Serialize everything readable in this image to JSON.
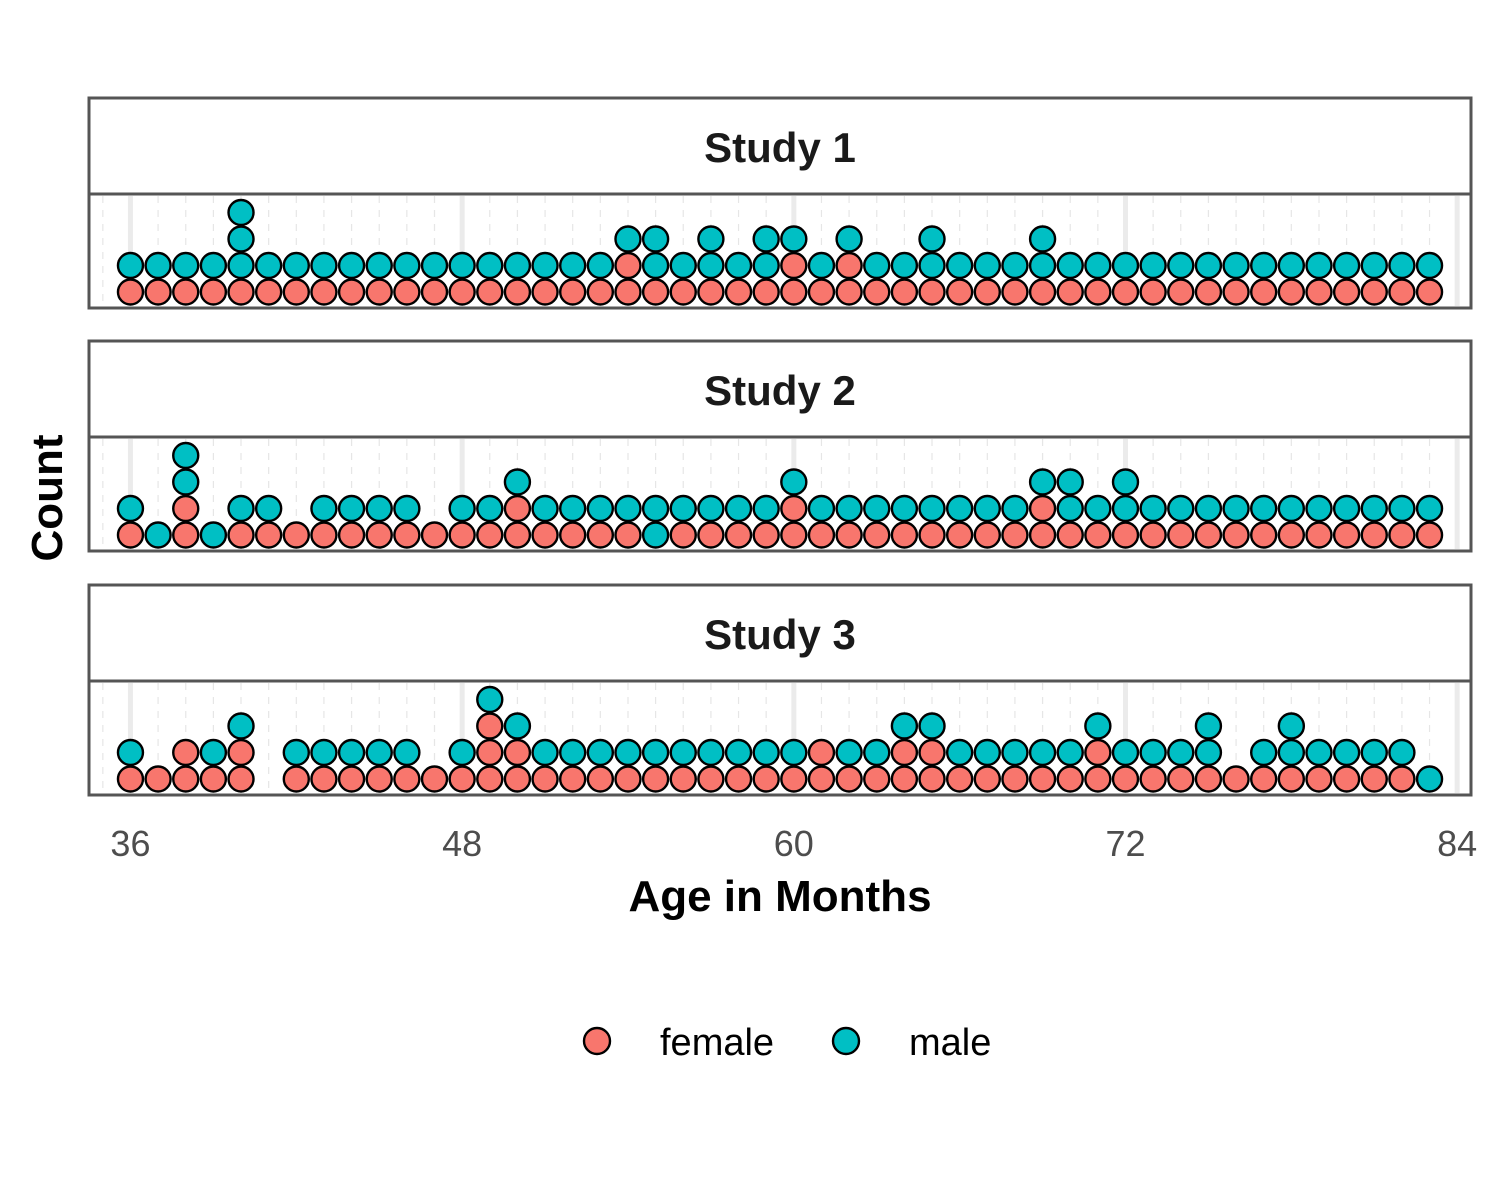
{
  "chart_data": {
    "type": "dotplot",
    "xlabel": "Age in Months",
    "ylabel": "Count",
    "xlim": [
      34.5,
      84.5
    ],
    "x_ticks": [
      "36",
      "48",
      "60",
      "72",
      "84"
    ],
    "grid": true,
    "legend_position": "bottom",
    "colors": {
      "female": "#F8766D",
      "male": "#00BFC4",
      "outline": "#000000"
    },
    "legend": [
      {
        "label": "female",
        "color": "#F8766D"
      },
      {
        "label": "male",
        "color": "#00BFC4"
      }
    ],
    "panels": [
      {
        "title": "Study 1",
        "stacks": [
          {
            "age": 36,
            "dots": [
              "female",
              "male"
            ]
          },
          {
            "age": 37,
            "dots": [
              "female",
              "male"
            ]
          },
          {
            "age": 38,
            "dots": [
              "female",
              "male"
            ]
          },
          {
            "age": 39,
            "dots": [
              "female",
              "male"
            ]
          },
          {
            "age": 40,
            "dots": [
              "female",
              "male",
              "male",
              "male"
            ]
          },
          {
            "age": 41,
            "dots": [
              "female",
              "male"
            ]
          },
          {
            "age": 42,
            "dots": [
              "female",
              "male"
            ]
          },
          {
            "age": 43,
            "dots": [
              "female",
              "male"
            ]
          },
          {
            "age": 44,
            "dots": [
              "female",
              "male"
            ]
          },
          {
            "age": 45,
            "dots": [
              "female",
              "male"
            ]
          },
          {
            "age": 46,
            "dots": [
              "female",
              "male"
            ]
          },
          {
            "age": 47,
            "dots": [
              "female",
              "male"
            ]
          },
          {
            "age": 48,
            "dots": [
              "female",
              "male"
            ]
          },
          {
            "age": 49,
            "dots": [
              "female",
              "male"
            ]
          },
          {
            "age": 50,
            "dots": [
              "female",
              "male"
            ]
          },
          {
            "age": 51,
            "dots": [
              "female",
              "male"
            ]
          },
          {
            "age": 52,
            "dots": [
              "female",
              "male"
            ]
          },
          {
            "age": 53,
            "dots": [
              "female",
              "male"
            ]
          },
          {
            "age": 54,
            "dots": [
              "female",
              "female",
              "male"
            ]
          },
          {
            "age": 55,
            "dots": [
              "female",
              "male",
              "male"
            ]
          },
          {
            "age": 56,
            "dots": [
              "female",
              "male"
            ]
          },
          {
            "age": 57,
            "dots": [
              "female",
              "male",
              "male"
            ]
          },
          {
            "age": 58,
            "dots": [
              "female",
              "male"
            ]
          },
          {
            "age": 59,
            "dots": [
              "female",
              "male",
              "male"
            ]
          },
          {
            "age": 60,
            "dots": [
              "female",
              "female",
              "male"
            ]
          },
          {
            "age": 61,
            "dots": [
              "female",
              "male"
            ]
          },
          {
            "age": 62,
            "dots": [
              "female",
              "female",
              "male"
            ]
          },
          {
            "age": 63,
            "dots": [
              "female",
              "male"
            ]
          },
          {
            "age": 64,
            "dots": [
              "female",
              "male"
            ]
          },
          {
            "age": 65,
            "dots": [
              "female",
              "male",
              "male"
            ]
          },
          {
            "age": 66,
            "dots": [
              "female",
              "male"
            ]
          },
          {
            "age": 67,
            "dots": [
              "female",
              "male"
            ]
          },
          {
            "age": 68,
            "dots": [
              "female",
              "male"
            ]
          },
          {
            "age": 69,
            "dots": [
              "female",
              "male",
              "male"
            ]
          },
          {
            "age": 70,
            "dots": [
              "female",
              "male"
            ]
          },
          {
            "age": 71,
            "dots": [
              "female",
              "male"
            ]
          },
          {
            "age": 72,
            "dots": [
              "female",
              "male"
            ]
          },
          {
            "age": 73,
            "dots": [
              "female",
              "male"
            ]
          },
          {
            "age": 74,
            "dots": [
              "female",
              "male"
            ]
          },
          {
            "age": 75,
            "dots": [
              "female",
              "male"
            ]
          },
          {
            "age": 76,
            "dots": [
              "female",
              "male"
            ]
          },
          {
            "age": 77,
            "dots": [
              "female",
              "male"
            ]
          },
          {
            "age": 78,
            "dots": [
              "female",
              "male"
            ]
          },
          {
            "age": 79,
            "dots": [
              "female",
              "male"
            ]
          },
          {
            "age": 80,
            "dots": [
              "female",
              "male"
            ]
          },
          {
            "age": 81,
            "dots": [
              "female",
              "male"
            ]
          },
          {
            "age": 82,
            "dots": [
              "female",
              "male"
            ]
          },
          {
            "age": 83,
            "dots": [
              "female",
              "male"
            ]
          }
        ]
      },
      {
        "title": "Study 2",
        "stacks": [
          {
            "age": 36,
            "dots": [
              "female",
              "male"
            ]
          },
          {
            "age": 37,
            "dots": [
              "male"
            ]
          },
          {
            "age": 38,
            "dots": [
              "female",
              "female",
              "male",
              "male"
            ]
          },
          {
            "age": 39,
            "dots": [
              "male"
            ]
          },
          {
            "age": 40,
            "dots": [
              "female",
              "male"
            ]
          },
          {
            "age": 41,
            "dots": [
              "female",
              "male"
            ]
          },
          {
            "age": 42,
            "dots": [
              "female"
            ]
          },
          {
            "age": 43,
            "dots": [
              "female",
              "male"
            ]
          },
          {
            "age": 44,
            "dots": [
              "female",
              "male"
            ]
          },
          {
            "age": 45,
            "dots": [
              "female",
              "male"
            ]
          },
          {
            "age": 46,
            "dots": [
              "female",
              "male"
            ]
          },
          {
            "age": 47,
            "dots": [
              "female"
            ]
          },
          {
            "age": 48,
            "dots": [
              "female",
              "male"
            ]
          },
          {
            "age": 49,
            "dots": [
              "female",
              "male"
            ]
          },
          {
            "age": 50,
            "dots": [
              "female",
              "female",
              "male"
            ]
          },
          {
            "age": 51,
            "dots": [
              "female",
              "male"
            ]
          },
          {
            "age": 52,
            "dots": [
              "female",
              "male"
            ]
          },
          {
            "age": 53,
            "dots": [
              "female",
              "male"
            ]
          },
          {
            "age": 54,
            "dots": [
              "female",
              "male"
            ]
          },
          {
            "age": 55,
            "dots": [
              "male",
              "male"
            ]
          },
          {
            "age": 56,
            "dots": [
              "female",
              "male"
            ]
          },
          {
            "age": 57,
            "dots": [
              "female",
              "male"
            ]
          },
          {
            "age": 58,
            "dots": [
              "female",
              "male"
            ]
          },
          {
            "age": 59,
            "dots": [
              "female",
              "male"
            ]
          },
          {
            "age": 60,
            "dots": [
              "female",
              "female",
              "male"
            ]
          },
          {
            "age": 61,
            "dots": [
              "female",
              "male"
            ]
          },
          {
            "age": 62,
            "dots": [
              "female",
              "male"
            ]
          },
          {
            "age": 63,
            "dots": [
              "female",
              "male"
            ]
          },
          {
            "age": 64,
            "dots": [
              "female",
              "male"
            ]
          },
          {
            "age": 65,
            "dots": [
              "female",
              "male"
            ]
          },
          {
            "age": 66,
            "dots": [
              "female",
              "male"
            ]
          },
          {
            "age": 67,
            "dots": [
              "female",
              "male"
            ]
          },
          {
            "age": 68,
            "dots": [
              "female",
              "male"
            ]
          },
          {
            "age": 69,
            "dots": [
              "female",
              "female",
              "male"
            ]
          },
          {
            "age": 70,
            "dots": [
              "female",
              "male",
              "male"
            ]
          },
          {
            "age": 71,
            "dots": [
              "female",
              "male"
            ]
          },
          {
            "age": 72,
            "dots": [
              "female",
              "male",
              "male"
            ]
          },
          {
            "age": 73,
            "dots": [
              "female",
              "male"
            ]
          },
          {
            "age": 74,
            "dots": [
              "female",
              "male"
            ]
          },
          {
            "age": 75,
            "dots": [
              "female",
              "male"
            ]
          },
          {
            "age": 76,
            "dots": [
              "female",
              "male"
            ]
          },
          {
            "age": 77,
            "dots": [
              "female",
              "male"
            ]
          },
          {
            "age": 78,
            "dots": [
              "female",
              "male"
            ]
          },
          {
            "age": 79,
            "dots": [
              "female",
              "male"
            ]
          },
          {
            "age": 80,
            "dots": [
              "female",
              "male"
            ]
          },
          {
            "age": 81,
            "dots": [
              "female",
              "male"
            ]
          },
          {
            "age": 82,
            "dots": [
              "female",
              "male"
            ]
          },
          {
            "age": 83,
            "dots": [
              "female",
              "male"
            ]
          }
        ]
      },
      {
        "title": "Study 3",
        "stacks": [
          {
            "age": 36,
            "dots": [
              "female",
              "male"
            ]
          },
          {
            "age": 37,
            "dots": [
              "female"
            ]
          },
          {
            "age": 38,
            "dots": [
              "female",
              "female"
            ]
          },
          {
            "age": 39,
            "dots": [
              "female",
              "male"
            ]
          },
          {
            "age": 40,
            "dots": [
              "female",
              "female",
              "male"
            ]
          },
          {
            "age": 42,
            "dots": [
              "female",
              "male"
            ]
          },
          {
            "age": 43,
            "dots": [
              "female",
              "male"
            ]
          },
          {
            "age": 44,
            "dots": [
              "female",
              "male"
            ]
          },
          {
            "age": 45,
            "dots": [
              "female",
              "male"
            ]
          },
          {
            "age": 46,
            "dots": [
              "female",
              "male"
            ]
          },
          {
            "age": 47,
            "dots": [
              "female"
            ]
          },
          {
            "age": 48,
            "dots": [
              "female",
              "male"
            ]
          },
          {
            "age": 49,
            "dots": [
              "female",
              "female",
              "female",
              "male"
            ]
          },
          {
            "age": 50,
            "dots": [
              "female",
              "female",
              "male"
            ]
          },
          {
            "age": 51,
            "dots": [
              "female",
              "male"
            ]
          },
          {
            "age": 52,
            "dots": [
              "female",
              "male"
            ]
          },
          {
            "age": 53,
            "dots": [
              "female",
              "male"
            ]
          },
          {
            "age": 54,
            "dots": [
              "female",
              "male"
            ]
          },
          {
            "age": 55,
            "dots": [
              "female",
              "male"
            ]
          },
          {
            "age": 56,
            "dots": [
              "female",
              "male"
            ]
          },
          {
            "age": 57,
            "dots": [
              "female",
              "male"
            ]
          },
          {
            "age": 58,
            "dots": [
              "female",
              "male"
            ]
          },
          {
            "age": 59,
            "dots": [
              "female",
              "male"
            ]
          },
          {
            "age": 60,
            "dots": [
              "female",
              "male"
            ]
          },
          {
            "age": 61,
            "dots": [
              "female",
              "female"
            ]
          },
          {
            "age": 62,
            "dots": [
              "female",
              "male"
            ]
          },
          {
            "age": 63,
            "dots": [
              "female",
              "male"
            ]
          },
          {
            "age": 64,
            "dots": [
              "female",
              "female",
              "male"
            ]
          },
          {
            "age": 65,
            "dots": [
              "female",
              "female",
              "male"
            ]
          },
          {
            "age": 66,
            "dots": [
              "female",
              "male"
            ]
          },
          {
            "age": 67,
            "dots": [
              "female",
              "male"
            ]
          },
          {
            "age": 68,
            "dots": [
              "female",
              "male"
            ]
          },
          {
            "age": 69,
            "dots": [
              "female",
              "male"
            ]
          },
          {
            "age": 70,
            "dots": [
              "female",
              "male"
            ]
          },
          {
            "age": 71,
            "dots": [
              "female",
              "female",
              "male"
            ]
          },
          {
            "age": 72,
            "dots": [
              "female",
              "male"
            ]
          },
          {
            "age": 73,
            "dots": [
              "female",
              "male"
            ]
          },
          {
            "age": 74,
            "dots": [
              "female",
              "male"
            ]
          },
          {
            "age": 75,
            "dots": [
              "female",
              "male",
              "male"
            ]
          },
          {
            "age": 76,
            "dots": [
              "female"
            ]
          },
          {
            "age": 77,
            "dots": [
              "female",
              "male"
            ]
          },
          {
            "age": 78,
            "dots": [
              "female",
              "male",
              "male"
            ]
          },
          {
            "age": 79,
            "dots": [
              "female",
              "male"
            ]
          },
          {
            "age": 80,
            "dots": [
              "female",
              "male"
            ]
          },
          {
            "age": 81,
            "dots": [
              "female",
              "male"
            ]
          },
          {
            "age": 82,
            "dots": [
              "female",
              "male"
            ]
          },
          {
            "age": 83,
            "dots": [
              "male"
            ]
          }
        ]
      }
    ]
  }
}
